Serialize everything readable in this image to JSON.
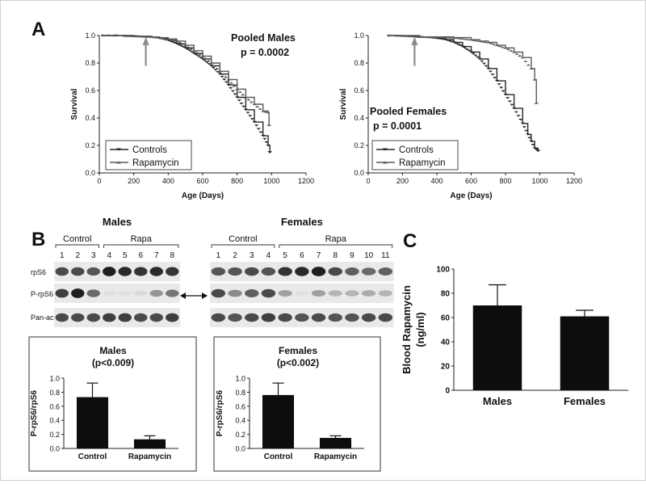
{
  "panels": {
    "a": "A",
    "b": "B",
    "c": "C"
  },
  "chart_data": [
    {
      "type": "line",
      "panel": "A",
      "annotation": "Pooled Males",
      "pvalue": "p = 0.0002",
      "xlabel": "Age (Days)",
      "ylabel": "Survival",
      "xlim": [
        0,
        1200
      ],
      "ylim": [
        0,
        1.0
      ],
      "xticks": [
        "0",
        "200",
        "400",
        "600",
        "800",
        "1000",
        "1200"
      ],
      "yticks": [
        "0.0",
        "0.2",
        "0.4",
        "0.6",
        "0.8",
        "1.0"
      ],
      "arrow_at_x": 270,
      "legend_position": "bottom-left",
      "series": [
        {
          "name": "Controls",
          "marker": "down-triangle",
          "x": [
            20,
            100,
            200,
            300,
            350,
            400,
            450,
            500,
            550,
            600,
            650,
            700,
            750,
            800,
            850,
            900,
            950,
            980,
            990
          ],
          "y": [
            1.0,
            1.0,
            0.995,
            0.99,
            0.98,
            0.965,
            0.94,
            0.91,
            0.87,
            0.83,
            0.78,
            0.72,
            0.64,
            0.55,
            0.46,
            0.37,
            0.27,
            0.2,
            0.15
          ]
        },
        {
          "name": "Rapamycin",
          "marker": "up-triangle",
          "x": [
            20,
            100,
            200,
            300,
            350,
            400,
            450,
            500,
            550,
            600,
            650,
            700,
            750,
            800,
            850,
            900,
            950,
            980,
            985,
            985
          ],
          "y": [
            1.0,
            1.0,
            0.995,
            0.99,
            0.985,
            0.975,
            0.96,
            0.93,
            0.89,
            0.85,
            0.8,
            0.74,
            0.68,
            0.61,
            0.55,
            0.5,
            0.45,
            0.44,
            0.44,
            0.35
          ]
        }
      ]
    },
    {
      "type": "line",
      "panel": "A",
      "annotation": "Pooled Females",
      "pvalue": "p = 0.0001",
      "xlabel": "Age (Days)",
      "ylabel": "Survival",
      "xlim": [
        0,
        1200
      ],
      "ylim": [
        0,
        1.0
      ],
      "xticks": [
        "0",
        "200",
        "400",
        "600",
        "800",
        "1000",
        "1200"
      ],
      "yticks": [
        "0.0",
        "0.2",
        "0.4",
        "0.6",
        "0.8",
        "1.0"
      ],
      "arrow_at_x": 270,
      "legend_position": "bottom-left",
      "series": [
        {
          "name": "Controls",
          "marker": "down-triangle",
          "x": [
            120,
            200,
            300,
            400,
            450,
            500,
            550,
            600,
            650,
            700,
            750,
            800,
            850,
            900,
            930,
            950,
            970,
            990
          ],
          "y": [
            1.0,
            0.995,
            0.99,
            0.98,
            0.97,
            0.95,
            0.92,
            0.88,
            0.83,
            0.76,
            0.67,
            0.57,
            0.47,
            0.36,
            0.28,
            0.23,
            0.18,
            0.16
          ]
        },
        {
          "name": "Rapamycin",
          "marker": "up-triangle",
          "x": [
            120,
            200,
            300,
            400,
            500,
            600,
            650,
            700,
            750,
            800,
            850,
            900,
            950,
            970,
            980,
            980
          ],
          "y": [
            1.0,
            1.0,
            0.99,
            0.99,
            0.985,
            0.97,
            0.96,
            0.95,
            0.93,
            0.91,
            0.88,
            0.84,
            0.76,
            0.68,
            0.65,
            0.51
          ]
        }
      ]
    },
    {
      "type": "bar",
      "panel": "B",
      "title": "Males",
      "pvalue": "(p<0.009)",
      "ylabel": "P-rpS6/rpS6",
      "categories": [
        "Control",
        "Rapamycin"
      ],
      "values": [
        0.73,
        0.13
      ],
      "errors": [
        0.2,
        0.05
      ],
      "ylim": [
        0,
        1.0
      ],
      "yticks": [
        "0.0",
        "0.2",
        "0.4",
        "0.6",
        "0.8",
        "1.0"
      ]
    },
    {
      "type": "bar",
      "panel": "B",
      "title": "Females",
      "pvalue": "(p<0.002)",
      "ylabel": "P-rpS6/rpS6",
      "categories": [
        "Control",
        "Rapamycin"
      ],
      "values": [
        0.76,
        0.15
      ],
      "errors": [
        0.17,
        0.03
      ],
      "ylim": [
        0,
        1.0
      ],
      "yticks": [
        "0.0",
        "0.2",
        "0.4",
        "0.6",
        "0.8",
        "1.0"
      ]
    },
    {
      "type": "bar",
      "panel": "C",
      "ylabel": "Blood Rapamycin (ng/ml)",
      "ylabel_lines": [
        "Blood Rapamycin",
        "(ng/ml)"
      ],
      "categories": [
        "Males",
        "Females"
      ],
      "values": [
        70,
        61
      ],
      "errors": [
        17,
        5
      ],
      "ylim": [
        0,
        100
      ],
      "yticks": [
        "0",
        "20",
        "40",
        "60",
        "80",
        "100"
      ]
    }
  ],
  "blot": {
    "males": {
      "title": "Males",
      "groups": [
        "Control",
        "Rapa"
      ],
      "lanes": [
        "1",
        "2",
        "3",
        "4",
        "5",
        "6",
        "7",
        "8"
      ],
      "rows": [
        "rpS6",
        "P-rpS6",
        "Pan-actin"
      ],
      "intensity": {
        "rpS6": [
          0.75,
          0.75,
          0.7,
          0.95,
          0.9,
          0.85,
          0.9,
          0.85
        ],
        "P-rpS6": [
          0.8,
          0.95,
          0.6,
          0.05,
          0.05,
          0.08,
          0.4,
          0.55
        ],
        "Pan-actin": [
          0.75,
          0.75,
          0.75,
          0.8,
          0.8,
          0.75,
          0.75,
          0.8
        ]
      }
    },
    "females": {
      "title": "Females",
      "groups": [
        "Control",
        "Rapa"
      ],
      "lanes": [
        "1",
        "2",
        "3",
        "4",
        "5",
        "6",
        "7",
        "8",
        "9",
        "10",
        "11"
      ],
      "rows": [
        "rpS6",
        "P-rpS6",
        "Pan-actin"
      ],
      "intensity": {
        "rpS6": [
          0.7,
          0.7,
          0.75,
          0.7,
          0.85,
          0.9,
          0.95,
          0.75,
          0.65,
          0.6,
          0.65
        ],
        "P-rpS6": [
          0.75,
          0.45,
          0.65,
          0.75,
          0.35,
          0.05,
          0.35,
          0.25,
          0.25,
          0.3,
          0.25
        ],
        "Pan-actin": [
          0.75,
          0.7,
          0.75,
          0.8,
          0.75,
          0.7,
          0.75,
          0.7,
          0.7,
          0.75,
          0.75
        ]
      }
    }
  }
}
